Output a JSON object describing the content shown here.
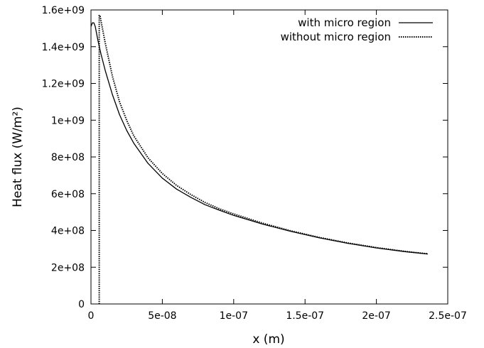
{
  "chart_data": {
    "type": "line",
    "xlabel": "x (m)",
    "ylabel": "Heat flux (W/m²)",
    "xlim": [
      0,
      2.5e-07
    ],
    "ylim": [
      0,
      1600000000.0
    ],
    "x_ticks": [
      {
        "value": 0,
        "label": "0"
      },
      {
        "value": 5e-08,
        "label": "5e-08"
      },
      {
        "value": 1e-07,
        "label": "1e-07"
      },
      {
        "value": 1.5e-07,
        "label": "1.5e-07"
      },
      {
        "value": 2e-07,
        "label": "2e-07"
      },
      {
        "value": 2.5e-07,
        "label": "2.5e-07"
      }
    ],
    "y_ticks": [
      {
        "value": 0,
        "label": "0"
      },
      {
        "value": 200000000.0,
        "label": "2e+08"
      },
      {
        "value": 400000000.0,
        "label": "4e+08"
      },
      {
        "value": 600000000.0,
        "label": "6e+08"
      },
      {
        "value": 800000000.0,
        "label": "8e+08"
      },
      {
        "value": 1000000000.0,
        "label": "1e+09"
      },
      {
        "value": 1200000000.0,
        "label": "1.2e+09"
      },
      {
        "value": 1400000000.0,
        "label": "1.4e+09"
      },
      {
        "value": 1600000000.0,
        "label": "1.6e+09"
      }
    ],
    "grid": false,
    "legend_position": "top-right",
    "series": [
      {
        "name": "with micro region",
        "style": "solid",
        "color": "#000000",
        "x": [
          0,
          1e-09,
          2e-09,
          3e-09,
          5e-09,
          7e-09,
          1e-08,
          1.5e-08,
          2e-08,
          2.5e-08,
          3e-08,
          4e-08,
          5e-08,
          6e-08,
          7e-08,
          8e-08,
          9e-08,
          1e-07,
          1.2e-07,
          1.4e-07,
          1.6e-07,
          1.8e-07,
          2e-07,
          2.2e-07,
          2.36e-07
        ],
        "y": [
          1510000000.0,
          1530000000.0,
          1530000000.0,
          1510000000.0,
          1430000000.0,
          1360000000.0,
          1270000000.0,
          1140000000.0,
          1030000000.0,
          945000000.0,
          875000000.0,
          765000000.0,
          685000000.0,
          625000000.0,
          580000000.0,
          540000000.0,
          510000000.0,
          482000000.0,
          435000000.0,
          395000000.0,
          360000000.0,
          330000000.0,
          305000000.0,
          285000000.0,
          272000000.0
        ]
      },
      {
        "name": "without micro region",
        "style": "dotted",
        "color": "#000000",
        "x": [
          5.8e-09,
          5.8e-09,
          6.3e-09,
          7e-09,
          1e-08,
          1.5e-08,
          2e-08,
          2.5e-08,
          3e-08,
          4e-08,
          5e-08,
          6e-08,
          7e-08,
          8e-08,
          9e-08,
          1e-07,
          1.2e-07,
          1.4e-07,
          1.6e-07,
          1.8e-07,
          2e-07,
          2.2e-07,
          2.36e-07
        ],
        "y": [
          0,
          1570000000.0,
          1570000000.0,
          1540000000.0,
          1420000000.0,
          1240000000.0,
          1100000000.0,
          1000000000.0,
          915000000.0,
          795000000.0,
          710000000.0,
          645000000.0,
          595000000.0,
          552000000.0,
          518000000.0,
          490000000.0,
          440000000.0,
          398000000.0,
          362000000.0,
          332000000.0,
          307000000.0,
          286000000.0,
          273000000.0
        ]
      }
    ]
  }
}
